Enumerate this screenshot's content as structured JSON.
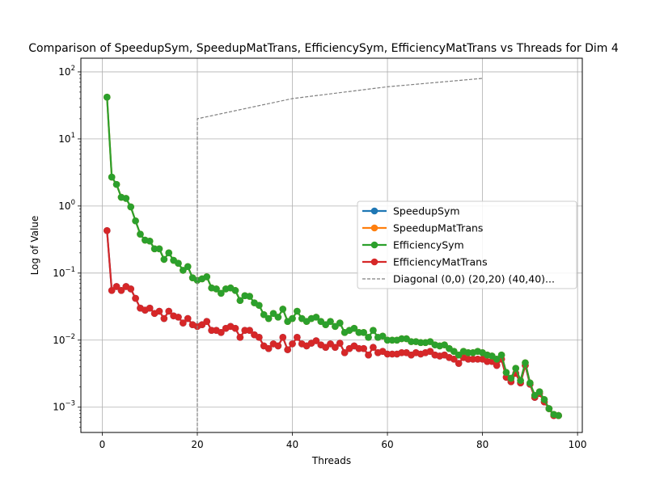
{
  "chart_data": {
    "type": "line",
    "title": "Comparison of SpeedupSym, SpeedupMatTrans, EfficiencySym, EfficiencyMatTrans vs Threads for Dim 4",
    "xlabel": "Threads",
    "ylabel": "Log of Value",
    "xscale": "linear",
    "yscale": "log",
    "xlim": [
      -4.5,
      101
    ],
    "ylim": [
      0.00042,
      160
    ],
    "xticks": [
      0,
      20,
      40,
      60,
      80,
      100
    ],
    "xtick_labels": [
      "0",
      "20",
      "40",
      "60",
      "80",
      "100"
    ],
    "yticks": [
      0.001,
      0.01,
      0.1,
      1,
      10,
      100
    ],
    "ytick_labels": [
      "10^-3",
      "10^-2",
      "10^-1",
      "10^0",
      "10^1",
      "10^2"
    ],
    "grid": true,
    "legend_position": "center-right",
    "x": [
      1,
      2,
      3,
      4,
      5,
      6,
      7,
      8,
      9,
      10,
      11,
      12,
      13,
      14,
      15,
      16,
      17,
      18,
      19,
      20,
      21,
      22,
      23,
      24,
      25,
      26,
      27,
      28,
      29,
      30,
      31,
      32,
      33,
      34,
      35,
      36,
      37,
      38,
      39,
      40,
      41,
      42,
      43,
      44,
      45,
      46,
      47,
      48,
      49,
      50,
      51,
      52,
      53,
      54,
      55,
      56,
      57,
      58,
      59,
      60,
      61,
      62,
      63,
      64,
      65,
      66,
      67,
      68,
      69,
      70,
      71,
      72,
      73,
      74,
      75,
      76,
      77,
      78,
      79,
      80,
      81,
      82,
      83,
      84,
      85,
      86,
      87,
      88,
      89,
      90,
      91,
      92,
      93,
      94,
      95,
      96
    ],
    "series": [
      {
        "name": "SpeedupSym",
        "color": "#1f77b4",
        "values": [
          0.43,
          0.055,
          0.063,
          0.055,
          0.063,
          0.058,
          0.042,
          0.03,
          0.028,
          0.03,
          0.025,
          0.027,
          0.021,
          0.027,
          0.023,
          0.022,
          0.018,
          0.021,
          0.017,
          0.016,
          0.017,
          0.019,
          0.014,
          0.014,
          0.013,
          0.015,
          0.016,
          0.015,
          0.011,
          0.014,
          0.014,
          0.012,
          0.011,
          0.0082,
          0.0075,
          0.0088,
          0.0082,
          0.011,
          0.0072,
          0.0088,
          0.011,
          0.0088,
          0.0082,
          0.009,
          0.0098,
          0.0085,
          0.0078,
          0.0088,
          0.0078,
          0.009,
          0.0065,
          0.0075,
          0.0082,
          0.0075,
          0.0075,
          0.006,
          0.0078,
          0.0065,
          0.0068,
          0.0062,
          0.0062,
          0.0062,
          0.0065,
          0.0065,
          0.006,
          0.0065,
          0.0062,
          0.0065,
          0.0068,
          0.006,
          0.0058,
          0.006,
          0.0055,
          0.0052,
          0.0045,
          0.0055,
          0.0052,
          0.0052,
          0.0052,
          0.0052,
          0.0048,
          0.0048,
          0.0042,
          0.0052,
          0.0028,
          0.0024,
          0.0032,
          0.0023,
          0.0042,
          0.0022,
          0.0014,
          0.0016,
          0.0012,
          0.00095,
          0.00075,
          0.00075
        ]
      },
      {
        "name": "SpeedupMatTrans",
        "color": "#ff7f0e",
        "values": [
          42,
          2.7,
          2.1,
          1.35,
          1.3,
          0.97,
          0.6,
          0.38,
          0.31,
          0.3,
          0.23,
          0.23,
          0.16,
          0.2,
          0.155,
          0.14,
          0.11,
          0.125,
          0.085,
          0.078,
          0.082,
          0.088,
          0.06,
          0.058,
          0.05,
          0.058,
          0.06,
          0.055,
          0.039,
          0.046,
          0.045,
          0.036,
          0.033,
          0.024,
          0.021,
          0.025,
          0.022,
          0.029,
          0.019,
          0.021,
          0.027,
          0.021,
          0.019,
          0.021,
          0.022,
          0.019,
          0.017,
          0.019,
          0.016,
          0.018,
          0.013,
          0.014,
          0.015,
          0.013,
          0.013,
          0.011,
          0.014,
          0.011,
          0.0115,
          0.01,
          0.01,
          0.01,
          0.0105,
          0.0105,
          0.0095,
          0.0095,
          0.0092,
          0.0092,
          0.0095,
          0.0085,
          0.0082,
          0.0085,
          0.0075,
          0.0068,
          0.006,
          0.0068,
          0.0065,
          0.0065,
          0.0068,
          0.0065,
          0.006,
          0.0058,
          0.0052,
          0.006,
          0.0033,
          0.0027,
          0.0038,
          0.0025,
          0.0046,
          0.0023,
          0.0015,
          0.0017,
          0.0013,
          0.00095,
          0.00078,
          0.00075
        ]
      },
      {
        "name": "EfficiencySym",
        "color": "#2ca02c",
        "values": [
          42,
          2.7,
          2.1,
          1.35,
          1.3,
          0.97,
          0.6,
          0.38,
          0.31,
          0.3,
          0.23,
          0.23,
          0.16,
          0.2,
          0.155,
          0.14,
          0.11,
          0.125,
          0.085,
          0.078,
          0.082,
          0.088,
          0.06,
          0.058,
          0.05,
          0.058,
          0.06,
          0.055,
          0.039,
          0.046,
          0.045,
          0.036,
          0.033,
          0.024,
          0.021,
          0.025,
          0.022,
          0.029,
          0.019,
          0.021,
          0.027,
          0.021,
          0.019,
          0.021,
          0.022,
          0.019,
          0.017,
          0.019,
          0.016,
          0.018,
          0.013,
          0.014,
          0.015,
          0.013,
          0.013,
          0.011,
          0.014,
          0.011,
          0.0115,
          0.01,
          0.01,
          0.01,
          0.0105,
          0.0105,
          0.0095,
          0.0095,
          0.0092,
          0.0092,
          0.0095,
          0.0085,
          0.0082,
          0.0085,
          0.0075,
          0.0068,
          0.006,
          0.0068,
          0.0065,
          0.0065,
          0.0068,
          0.0065,
          0.006,
          0.0058,
          0.0052,
          0.006,
          0.0033,
          0.0027,
          0.0038,
          0.0025,
          0.0046,
          0.0023,
          0.0015,
          0.0017,
          0.0013,
          0.00095,
          0.00078,
          0.00075
        ]
      },
      {
        "name": "EfficiencyMatTrans",
        "color": "#d62728",
        "values": [
          0.43,
          0.055,
          0.063,
          0.055,
          0.063,
          0.058,
          0.042,
          0.03,
          0.028,
          0.03,
          0.025,
          0.027,
          0.021,
          0.027,
          0.023,
          0.022,
          0.018,
          0.021,
          0.017,
          0.016,
          0.017,
          0.019,
          0.014,
          0.014,
          0.013,
          0.015,
          0.016,
          0.015,
          0.011,
          0.014,
          0.014,
          0.012,
          0.011,
          0.0082,
          0.0075,
          0.0088,
          0.0082,
          0.011,
          0.0072,
          0.0088,
          0.011,
          0.0088,
          0.0082,
          0.009,
          0.0098,
          0.0085,
          0.0078,
          0.0088,
          0.0078,
          0.009,
          0.0065,
          0.0075,
          0.0082,
          0.0075,
          0.0075,
          0.006,
          0.0078,
          0.0065,
          0.0068,
          0.0062,
          0.0062,
          0.0062,
          0.0065,
          0.0065,
          0.006,
          0.0065,
          0.0062,
          0.0065,
          0.0068,
          0.006,
          0.0058,
          0.006,
          0.0055,
          0.0052,
          0.0045,
          0.0055,
          0.0052,
          0.0052,
          0.0052,
          0.0052,
          0.0048,
          0.0048,
          0.0042,
          0.0052,
          0.0028,
          0.0024,
          0.0032,
          0.0023,
          0.0042,
          0.0022,
          0.0014,
          0.0016,
          0.0012,
          0.00095,
          0.00075,
          0.00075
        ]
      }
    ],
    "reference_line": {
      "name": "Diagonal (0,0) (20,20) (40,40)...",
      "color": "#808080",
      "style": "dashed",
      "x": [
        20,
        20,
        40,
        60,
        80
      ],
      "y": [
        0.0001,
        20,
        40,
        60,
        80
      ]
    },
    "draw_order": [
      "SpeedupSym",
      "EfficiencyMatTrans",
      "SpeedupMatTrans",
      "EfficiencySym"
    ],
    "legend_entries": [
      "SpeedupSym",
      "SpeedupMatTrans",
      "EfficiencySym",
      "EfficiencyMatTrans",
      "Diagonal (0,0) (20,20) (40,40)..."
    ]
  }
}
